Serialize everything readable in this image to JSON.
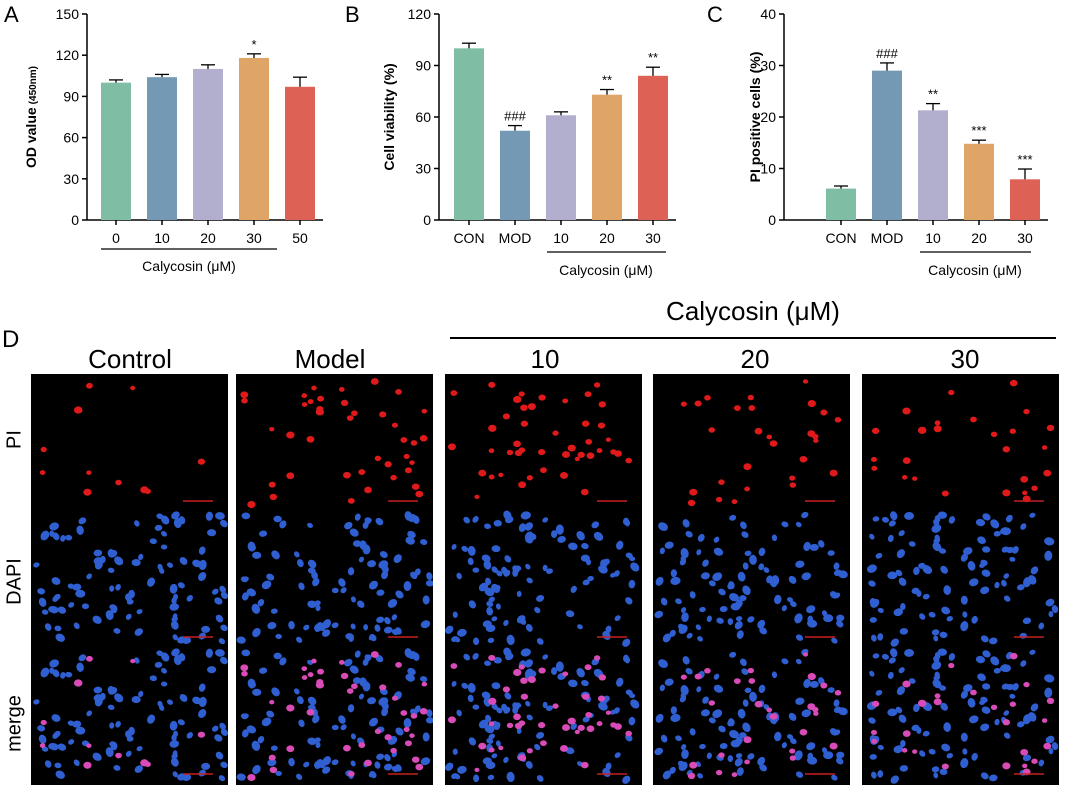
{
  "chart_data": [
    {
      "panel": "A",
      "type": "bar",
      "categories": [
        "0",
        "10",
        "20",
        "30",
        "50"
      ],
      "values": [
        100,
        104,
        110,
        118,
        97
      ],
      "errors": [
        2,
        2,
        3,
        3,
        7
      ],
      "significance": [
        "",
        "",
        "",
        "*",
        ""
      ],
      "colors": [
        "#7fbea4",
        "#7399b5",
        "#b1afcd",
        "#dea566",
        "#dd6155"
      ],
      "ylabel": "OD value",
      "ylabel_sub": "(450nm)",
      "ylim": [
        0,
        150
      ],
      "yticks": [
        "0",
        "30",
        "60",
        "90",
        "120",
        "150"
      ],
      "group_label": "Calycosin (μM)"
    },
    {
      "panel": "B",
      "type": "bar",
      "categories": [
        "CON",
        "MOD",
        "10",
        "20",
        "30"
      ],
      "values": [
        100,
        52,
        61,
        73,
        84
      ],
      "errors": [
        3,
        3,
        2,
        3,
        5
      ],
      "significance": [
        "",
        "###",
        "",
        "**",
        "**"
      ],
      "colors": [
        "#7fbea4",
        "#7399b5",
        "#b1afcd",
        "#dea566",
        "#dd6155"
      ],
      "ylabel": "Cell viability (%)",
      "ylim": [
        0,
        120
      ],
      "yticks": [
        "0",
        "30",
        "60",
        "90",
        "120"
      ],
      "group_label": "Calycosin (μM)"
    },
    {
      "panel": "C",
      "type": "bar",
      "categories": [
        "CON",
        "MOD",
        "10",
        "20",
        "30"
      ],
      "values": [
        6.1,
        29,
        21.3,
        14.8,
        7.9
      ],
      "errors": [
        0.5,
        1.5,
        1.3,
        0.7,
        2
      ],
      "significance": [
        "",
        "###",
        "**",
        "***",
        "***"
      ],
      "colors": [
        "#7fbea4",
        "#7399b5",
        "#b1afcd",
        "#dea566",
        "#dd6155"
      ],
      "ylabel": "PI positive cells (%)",
      "ylim": [
        0,
        40
      ],
      "yticks": [
        "0",
        "10",
        "20",
        "30",
        "40"
      ],
      "group_label": "Calycosin (μM)"
    }
  ],
  "imaging": {
    "panel": "D",
    "group_title": "Calycosin (μM)",
    "columns": [
      "Control",
      "Model",
      "10",
      "20",
      "30"
    ],
    "rows": [
      "PI",
      "DAPI",
      "merge"
    ],
    "pi_counts": [
      11,
      40,
      44,
      28,
      26
    ]
  }
}
